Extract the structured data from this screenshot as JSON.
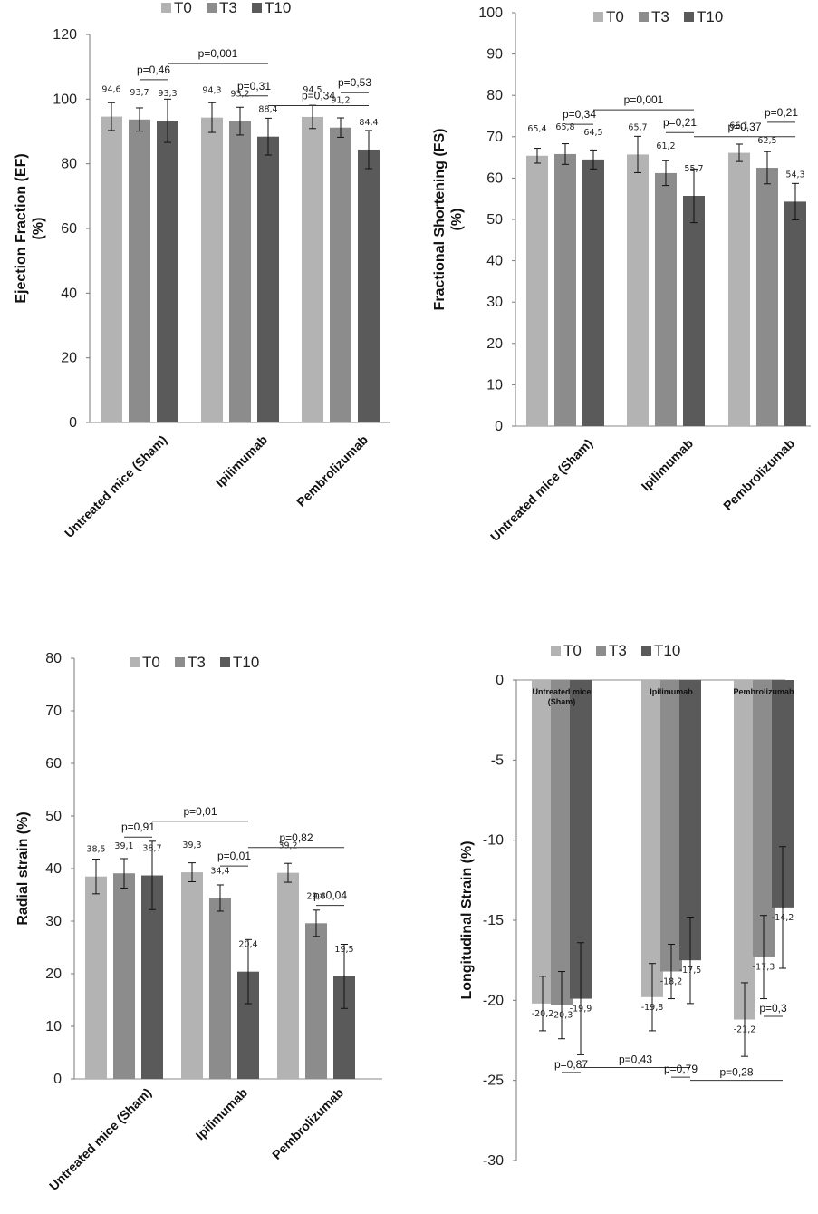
{
  "chart_data": [
    {
      "type": "bar",
      "ylabel": "Ejection Fraction (EF) (%)",
      "ylabel_lines": [
        "Ejection Fraction (EF)",
        "(%)"
      ],
      "ylim": [
        0,
        120
      ],
      "yticks": [
        0,
        20,
        40,
        60,
        80,
        100,
        120
      ],
      "categories": [
        "Untreated mice (Sham)",
        "Ipilimumab",
        "Pembrolizumab"
      ],
      "series": [
        {
          "name": "T0",
          "values": [
            94.6,
            94.3,
            94.5
          ],
          "errors": [
            4.3,
            4.6,
            3.6
          ],
          "labels": [
            "94,6",
            "94,3",
            "94,5"
          ]
        },
        {
          "name": "T3",
          "values": [
            93.7,
            93.2,
            91.2
          ],
          "errors": [
            3.6,
            4.3,
            3.0
          ],
          "labels": [
            "93,7",
            "93,2",
            "91,2"
          ]
        },
        {
          "name": "T10",
          "values": [
            93.3,
            88.4,
            84.4
          ],
          "errors": [
            6.7,
            5.7,
            5.9
          ],
          "labels": [
            "93,3",
            "88,4",
            "84,4"
          ]
        }
      ],
      "colors": [
        "#b3b3b3",
        "#8c8c8c",
        "#5a5a5a"
      ],
      "legend_position": "top",
      "annotations": [
        {
          "text": "p=0,46",
          "from": [
            0,
            1
          ],
          "to": [
            0,
            2
          ],
          "y": 106
        },
        {
          "text": "p=0,001",
          "from": [
            0,
            2
          ],
          "to": [
            1,
            2
          ],
          "y": 111
        },
        {
          "text": "p=0,31",
          "from": [
            1,
            1
          ],
          "to": [
            1,
            2
          ],
          "y": 101
        },
        {
          "text": "p=0,34",
          "from": [
            1,
            2
          ],
          "to": [
            2,
            2
          ],
          "y": 98
        },
        {
          "text": "p=0,53",
          "from": [
            2,
            1
          ],
          "to": [
            2,
            2
          ],
          "y": 102
        }
      ]
    },
    {
      "type": "bar",
      "ylabel": "Fractional Shortening (FS) (%)",
      "ylabel_lines": [
        "Fractional Shortening (FS)",
        "(%)"
      ],
      "ylim": [
        0,
        100
      ],
      "yticks": [
        0,
        10,
        20,
        30,
        40,
        50,
        60,
        70,
        80,
        90,
        100
      ],
      "categories": [
        "Untreated mice (Sham)",
        "Ipilimumab",
        "Pembrolizumab"
      ],
      "series": [
        {
          "name": "T0",
          "values": [
            65.4,
            65.7,
            66.1
          ],
          "errors": [
            1.8,
            4.4,
            2.1
          ],
          "labels": [
            "65,4",
            "65,7",
            "66,1"
          ]
        },
        {
          "name": "T3",
          "values": [
            65.8,
            61.2,
            62.5
          ],
          "errors": [
            2.5,
            3.0,
            3.9
          ],
          "labels": [
            "65,8",
            "61,2",
            "62,5"
          ]
        },
        {
          "name": "T10",
          "values": [
            64.5,
            55.7,
            54.3
          ],
          "errors": [
            2.3,
            6.5,
            4.4
          ],
          "labels": [
            "64,5",
            "55,7",
            "54,3"
          ]
        }
      ],
      "colors": [
        "#b3b3b3",
        "#8c8c8c",
        "#5a5a5a"
      ],
      "legend_position": "top",
      "annotations": [
        {
          "text": "p=0,34",
          "from": [
            0,
            1
          ],
          "to": [
            0,
            2
          ],
          "y": 73
        },
        {
          "text": "p=0,001",
          "from": [
            0,
            2
          ],
          "to": [
            1,
            2
          ],
          "y": 76.5
        },
        {
          "text": "p=0,21",
          "from": [
            1,
            1
          ],
          "to": [
            1,
            2
          ],
          "y": 71
        },
        {
          "text": "p=0,37",
          "from": [
            1,
            2
          ],
          "to": [
            2,
            2
          ],
          "y": 70
        },
        {
          "text": "p=0,21",
          "from": [
            2,
            1
          ],
          "to": [
            2,
            2
          ],
          "y": 73.5
        }
      ]
    },
    {
      "type": "bar",
      "ylabel": "Radial strain (%)",
      "ylabel_lines": [
        "Radial strain (%)"
      ],
      "ylim": [
        0,
        80
      ],
      "yticks": [
        0,
        10,
        20,
        30,
        40,
        50,
        60,
        70,
        80
      ],
      "categories": [
        "Untreated mice (Sham)",
        "Ipilimumab",
        "Pembrolizumab"
      ],
      "series": [
        {
          "name": "T0",
          "values": [
            38.5,
            39.3,
            39.2
          ],
          "errors": [
            3.3,
            1.8,
            1.8
          ],
          "labels": [
            "38,5",
            "39,3",
            "39,2"
          ]
        },
        {
          "name": "T3",
          "values": [
            39.1,
            34.4,
            29.6
          ],
          "errors": [
            2.8,
            2.5,
            2.5
          ],
          "labels": [
            "39,1",
            "34,4",
            "29,6"
          ]
        },
        {
          "name": "T10",
          "values": [
            38.7,
            20.4,
            19.5
          ],
          "errors": [
            6.5,
            6.1,
            6.1
          ],
          "labels": [
            "38,7",
            "20,4",
            "19,5"
          ]
        }
      ],
      "colors": [
        "#b3b3b3",
        "#8c8c8c",
        "#5a5a5a"
      ],
      "legend_position": "top",
      "annotations": [
        {
          "text": "p=0,91",
          "from": [
            0,
            1
          ],
          "to": [
            0,
            2
          ],
          "y": 46
        },
        {
          "text": "p=0,01",
          "from": [
            0,
            2
          ],
          "to": [
            1,
            2
          ],
          "y": 49
        },
        {
          "text": "p=0,01",
          "from": [
            1,
            1
          ],
          "to": [
            1,
            2
          ],
          "y": 40.5
        },
        {
          "text": "p=0,82",
          "from": [
            1,
            2
          ],
          "to": [
            2,
            2
          ],
          "y": 44
        },
        {
          "text": "p=0,04",
          "from": [
            2,
            1
          ],
          "to": [
            2,
            2
          ],
          "y": 33
        }
      ]
    },
    {
      "type": "bar",
      "ylabel": "Longitudinal Strain (%)",
      "ylabel_lines": [
        "Longitudinal Strain (%)"
      ],
      "ylim": [
        -30,
        0
      ],
      "yticks": [
        0,
        -5,
        -10,
        -15,
        -20,
        -25,
        -30
      ],
      "categories": [
        "Untreated mice (Sham)",
        "Ipilimumab",
        "Pembrolizumab"
      ],
      "category_label_lines": [
        [
          "Untreated mice",
          "(Sham)"
        ],
        [
          "Ipilimumab"
        ],
        [
          "Pembrolizumab"
        ]
      ],
      "series": [
        {
          "name": "T0",
          "values": [
            -20.2,
            -19.8,
            -21.2
          ],
          "errors": [
            1.7,
            2.1,
            2.3
          ],
          "labels": [
            "-20,2",
            "-19,8",
            "-21,2"
          ]
        },
        {
          "name": "T3",
          "values": [
            -20.3,
            -18.2,
            -17.3
          ],
          "errors": [
            2.1,
            1.7,
            2.6
          ],
          "labels": [
            "-20,3",
            "-18,2",
            "-17,3"
          ]
        },
        {
          "name": "T10",
          "values": [
            -19.9,
            -17.5,
            -14.2
          ],
          "errors": [
            3.5,
            2.7,
            3.8
          ],
          "labels": [
            "-19,9",
            "-17,5",
            "-14,2"
          ]
        }
      ],
      "colors": [
        "#b3b3b3",
        "#8c8c8c",
        "#5a5a5a"
      ],
      "legend_position": "top",
      "annotations": [
        {
          "text": "p=0,87",
          "from": [
            0,
            1
          ],
          "to": [
            0,
            2
          ],
          "y": -24.5
        },
        {
          "text": "p=0,43",
          "from": [
            0,
            2
          ],
          "to": [
            1,
            2
          ],
          "y": -24.2
        },
        {
          "text": "p=0,79",
          "from": [
            1,
            1
          ],
          "to": [
            1,
            2
          ],
          "y": -24.8
        },
        {
          "text": "p=0,28",
          "from": [
            1,
            2
          ],
          "to": [
            2,
            2
          ],
          "y": -25
        },
        {
          "text": "p=0,3",
          "from": [
            2,
            1
          ],
          "to": [
            2,
            2
          ],
          "y": -21
        }
      ]
    }
  ]
}
